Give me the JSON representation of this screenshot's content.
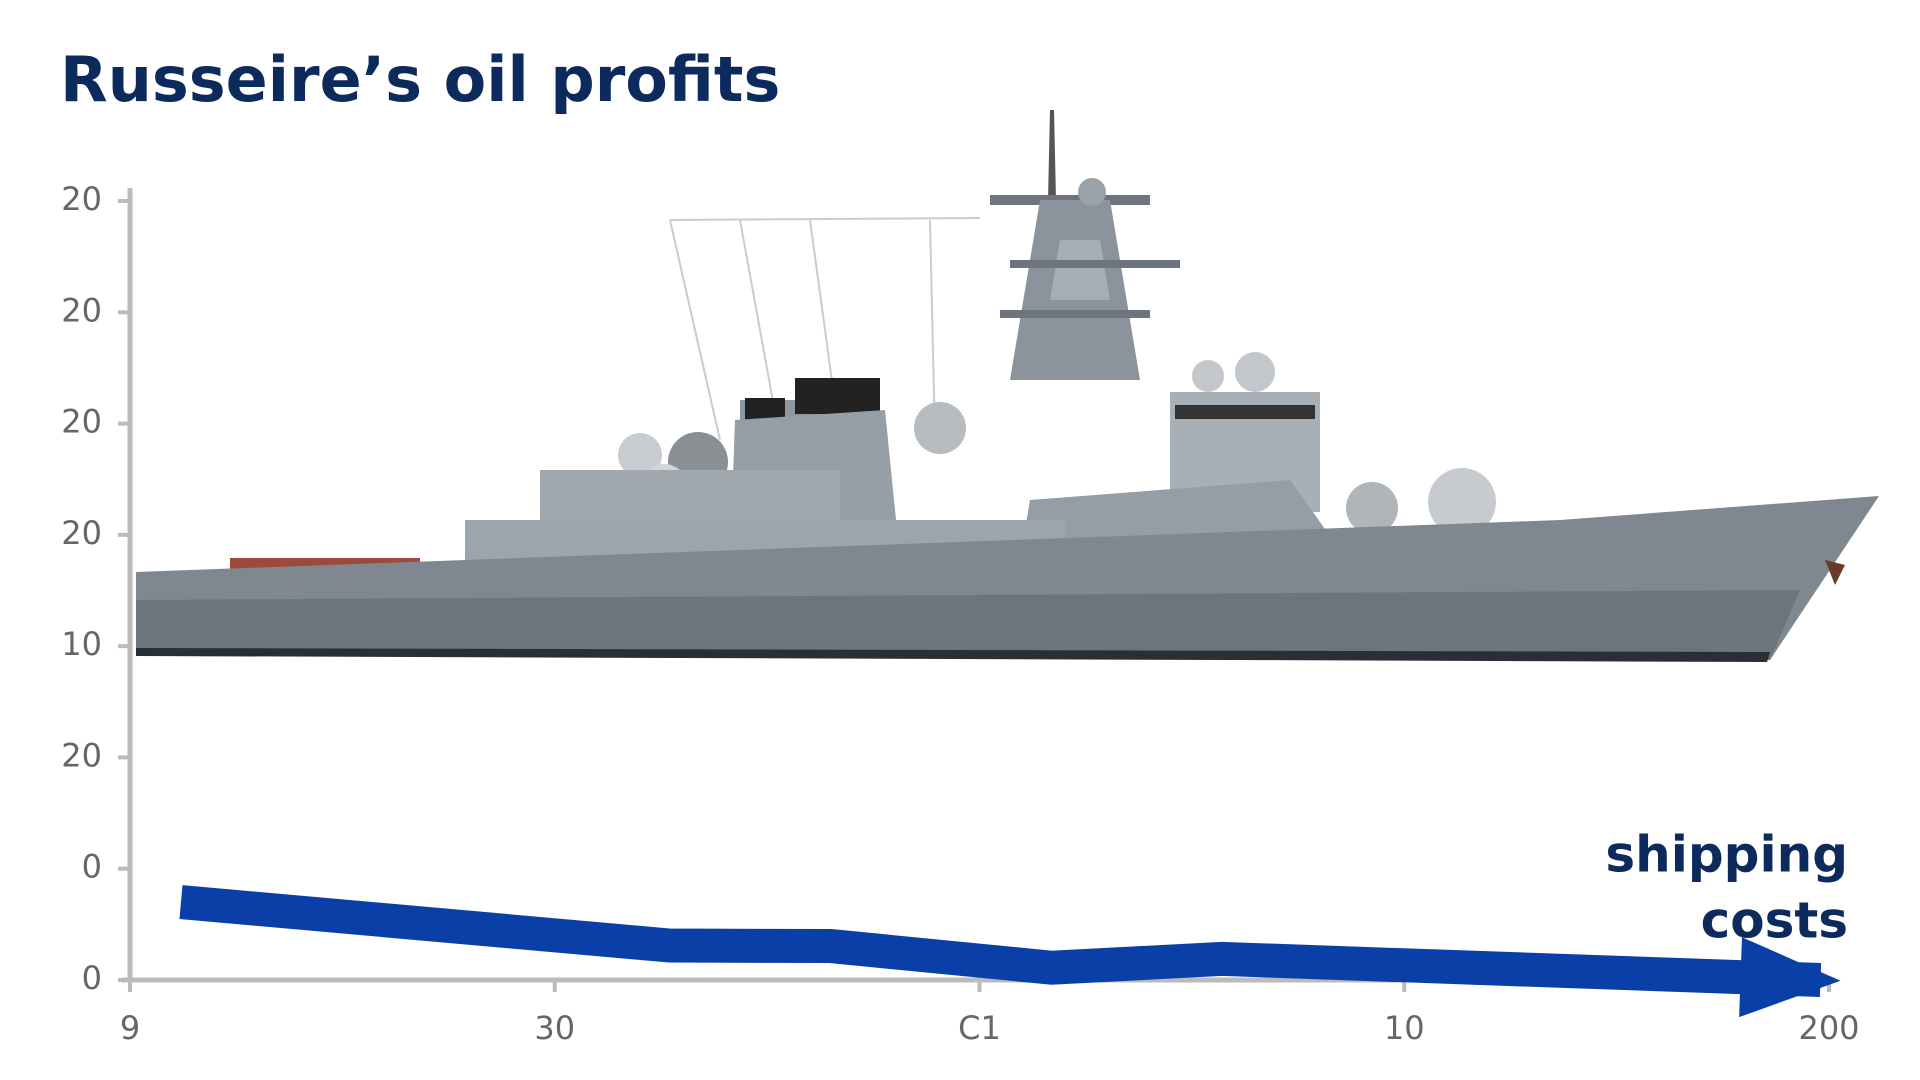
{
  "chart_data": {
    "type": "line",
    "title": "Russeire’s oil profits",
    "annotation_lines": [
      "shipping",
      "costs"
    ],
    "x": [
      0.12,
      1.27,
      1.65,
      2.17,
      2.57,
      3.98
    ],
    "values": [
      7,
      3.1,
      3.05,
      1.1,
      1.9,
      0
    ],
    "color": "#0b3fa8",
    "xlim": [
      0,
      4
    ],
    "xticks": [
      {
        "value": 0,
        "label": "9"
      },
      {
        "value": 1,
        "label": "30"
      },
      {
        "value": 2,
        "label": "C1"
      },
      {
        "value": 3,
        "label": "10"
      },
      {
        "value": 4,
        "label": "200"
      }
    ],
    "ylim": [
      0,
      70
    ],
    "yticks": [
      {
        "value": 0,
        "label": "0"
      },
      {
        "value": 10,
        "label": "0"
      },
      20,
      {
        "value": 30,
        "label": "10"
      },
      {
        "value": 40,
        "label": "20"
      },
      {
        "value": 50,
        "label": "20"
      },
      {
        "value": 60,
        "label": "20"
      },
      {
        "value": 70,
        "label": "20"
      }
    ]
  }
}
